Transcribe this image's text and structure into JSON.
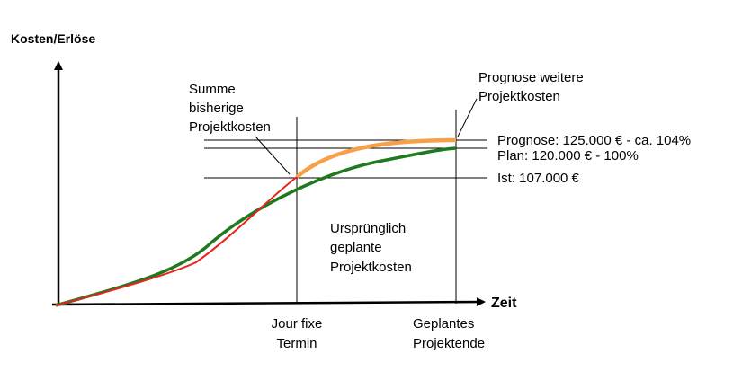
{
  "axes": {
    "y_label": "Kosten/Erlöse",
    "x_label": "Zeit"
  },
  "annotations": {
    "summe": [
      "Summe",
      "bisherige",
      "Projektkosten"
    ],
    "prognose_weitere": [
      "Prognose weitere",
      "Projektkosten"
    ],
    "urspruenglich": [
      "Ursprünglich",
      "geplante",
      "Projektkosten"
    ]
  },
  "levels": {
    "prognose": "Prognose: 125.000 € - ca. 104%",
    "plan": "Plan: 120.000 € -  100%",
    "ist": "Ist: 107.000 €"
  },
  "markers": {
    "jour_fixe": [
      "Jour fixe",
      "Termin"
    ],
    "projektende": [
      "Geplantes",
      "Projektende"
    ]
  },
  "colors": {
    "axis": "#000000",
    "ist_curve": "#e8231e",
    "plan_curve": "#1f7a1f",
    "prognose_curve": "#f7a04a",
    "guide_line": "#000000"
  }
}
